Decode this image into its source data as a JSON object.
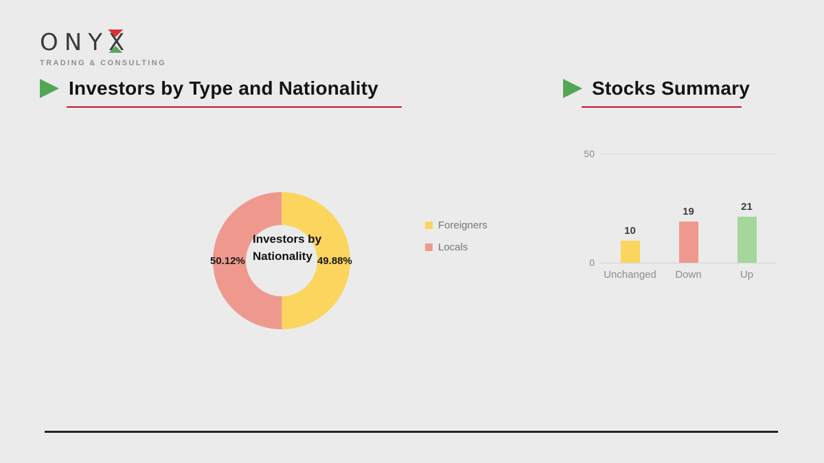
{
  "page": {
    "background": "#EBEBEB"
  },
  "logo": {
    "wordmark_prefix": "ONY",
    "wordmark_x": "X",
    "tagline": "TRADING & CONSULTING",
    "text_color": "#3B3B3D",
    "accent_red": "#DC2F34",
    "accent_green": "#57A85A"
  },
  "sections": {
    "left": {
      "title": "Investors by Type and Nationality"
    },
    "right": {
      "title": "Stocks Summary"
    }
  },
  "theme": {
    "underline_red": "#C3112D",
    "marker_green": "#53A653"
  },
  "chart_data": [
    {
      "type": "pie",
      "donut": true,
      "center_label": "Investors by Nationality",
      "legend_position": "right",
      "slices": [
        {
          "label": "Foreigners",
          "value": 49.88,
          "data_label": "49.88%",
          "color": "#FBD55E"
        },
        {
          "label": "Locals",
          "value": 50.12,
          "data_label": "50.12%",
          "color": "#EF998E"
        }
      ]
    },
    {
      "type": "bar",
      "title": "Stocks Summary",
      "categories": [
        "Unchanged",
        "Down",
        "Up"
      ],
      "values": [
        10,
        19,
        21
      ],
      "colors": [
        "#FBD55E",
        "#EF998E",
        "#A5D69C"
      ],
      "ylim": [
        0,
        50
      ],
      "ytick_labels": [
        "0",
        "50"
      ],
      "grid": true,
      "legend_position": "none"
    }
  ]
}
